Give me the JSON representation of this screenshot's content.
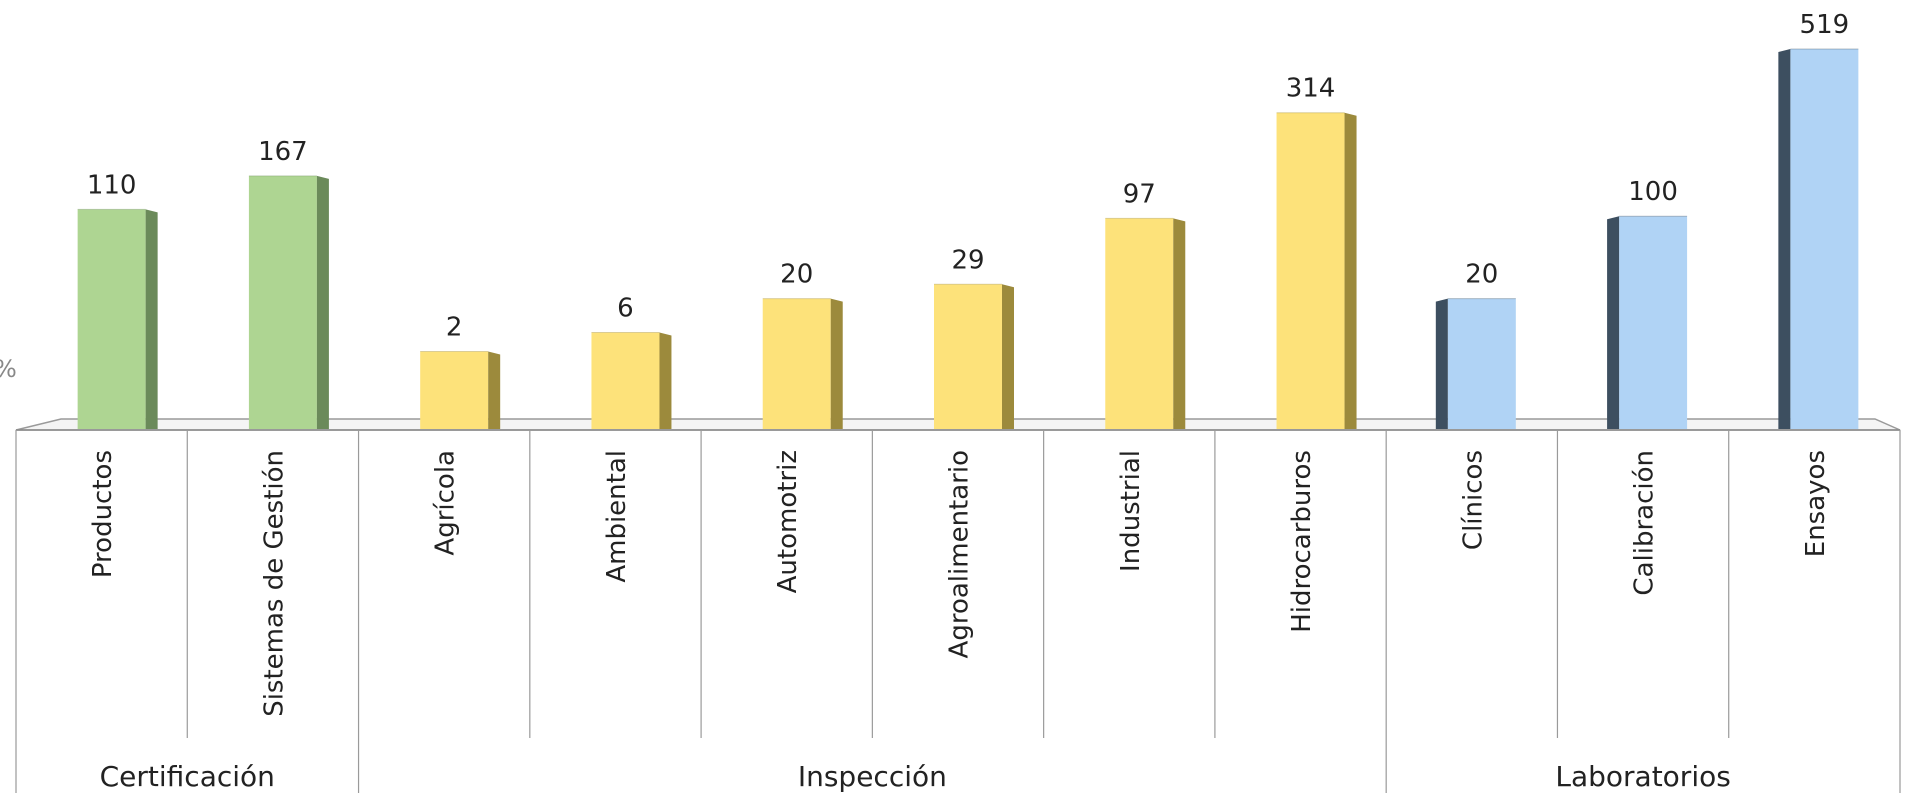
{
  "chart_data": {
    "type": "bar",
    "categories": [
      "Productos",
      "Sistemas de Gestión",
      "Agrícola",
      "Ambiental",
      "Automotriz",
      "Agroalimentario",
      "Industrial",
      "Hidrocarburos",
      "Clínicos",
      "Calibración",
      "Ensayos"
    ],
    "values": [
      110,
      167,
      2,
      6,
      20,
      29,
      97,
      314,
      20,
      100,
      519
    ],
    "groups": [
      {
        "label": "Certificación",
        "categories": [
          "Productos",
          "Sistemas de Gestión"
        ],
        "color": "#aed592",
        "side_color": "#6b8a5a"
      },
      {
        "label": "Inspección",
        "categories": [
          "Agrícola",
          "Ambiental",
          "Automotriz",
          "Agroalimentario",
          "Industrial",
          "Hidrocarburos"
        ],
        "color": "#fde27a",
        "side_color": "#9c8a3c"
      },
      {
        "label": "Laboratorios",
        "categories": [
          "Clínicos",
          "Calibración",
          "Ensayos"
        ],
        "color": "#b0d3f5",
        "side_color": "#3d4f60"
      }
    ],
    "partial_axis_label": "%",
    "title": "",
    "xlabel": "",
    "ylabel": "",
    "axis_scale": "non-linear (3D, bars not proportional)",
    "grid": false,
    "legend": "none"
  }
}
